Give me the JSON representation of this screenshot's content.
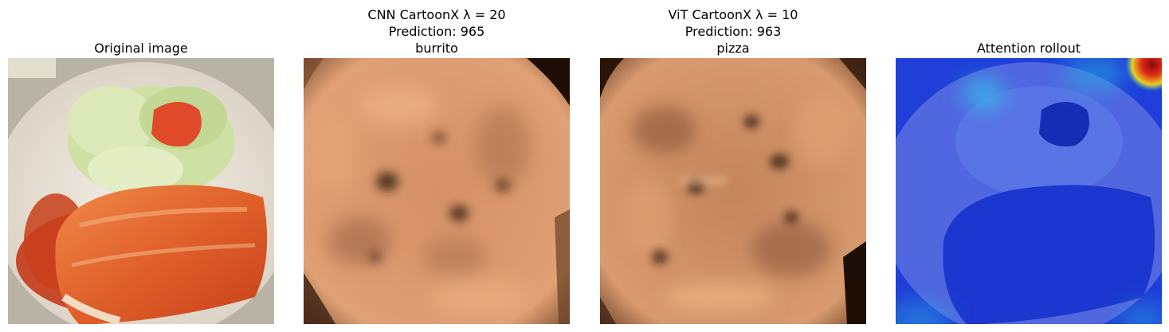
{
  "panels": [
    {
      "id": "original",
      "title_lines": [
        "Original image"
      ]
    },
    {
      "id": "cnn",
      "title_lines": [
        "CNN CartoonX λ = 20",
        "Prediction: 965",
        "burrito"
      ]
    },
    {
      "id": "vit",
      "title_lines": [
        "ViT CartoonX λ = 10",
        "Prediction: 963",
        "pizza"
      ]
    },
    {
      "id": "rollout",
      "title_lines": [
        "Attention rollout"
      ]
    }
  ],
  "colors": {
    "cartoon_base": "#d99a6c",
    "cartoon_dark": "#2a1408",
    "sauce": "#c8401a",
    "plate": "#e8e2d6",
    "lettuce": "#cfe0a4",
    "attention_blue": "#1f3fd8"
  }
}
